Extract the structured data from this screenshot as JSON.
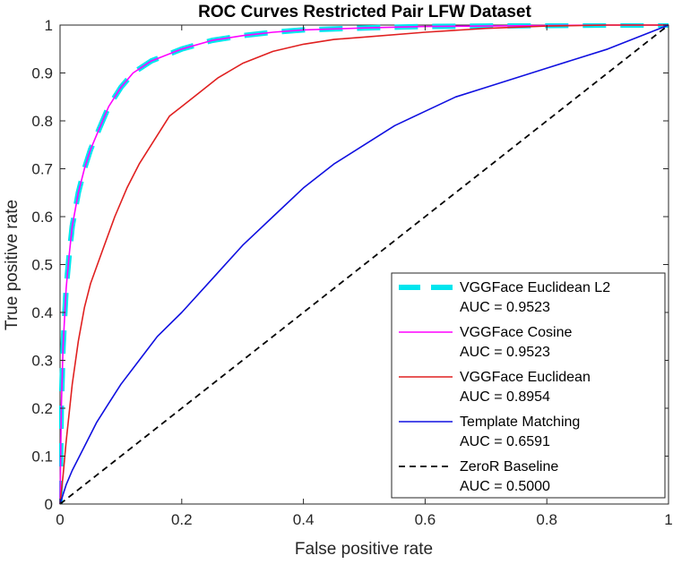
{
  "chart_data": {
    "type": "line",
    "title": "ROC Curves Restricted Pair LFW Dataset",
    "xlabel": "False positive rate",
    "ylabel": "True positive rate",
    "xlim": [
      0,
      1
    ],
    "ylim": [
      0,
      1
    ],
    "grid": false,
    "legend_position": "bottom-right",
    "x_ticks": [
      {
        "value": 0,
        "label": "0"
      },
      {
        "value": 0.2,
        "label": "0.2"
      },
      {
        "value": 0.4,
        "label": "0.4"
      },
      {
        "value": 0.6,
        "label": "0.6"
      },
      {
        "value": 0.8,
        "label": "0.8"
      },
      {
        "value": 1,
        "label": "1"
      }
    ],
    "y_ticks": [
      {
        "value": 0,
        "label": "0"
      },
      {
        "value": 0.1,
        "label": "0.1"
      },
      {
        "value": 0.2,
        "label": "0.2"
      },
      {
        "value": 0.3,
        "label": "0.3"
      },
      {
        "value": 0.4,
        "label": "0.4"
      },
      {
        "value": 0.5,
        "label": "0.5"
      },
      {
        "value": 0.6,
        "label": "0.6"
      },
      {
        "value": 0.7,
        "label": "0.7"
      },
      {
        "value": 0.8,
        "label": "0.8"
      },
      {
        "value": 0.9,
        "label": "0.9"
      },
      {
        "value": 1,
        "label": "1"
      }
    ],
    "series": [
      {
        "name": "VGGFace Euclidean L2",
        "auc_label": "AUC = 0.9523",
        "color": "#00e5ee",
        "style": "dashed-thick",
        "x": [
          0,
          0.002,
          0.005,
          0.01,
          0.015,
          0.02,
          0.03,
          0.04,
          0.05,
          0.06,
          0.08,
          0.1,
          0.12,
          0.15,
          0.2,
          0.25,
          0.3,
          0.35,
          0.4,
          0.5,
          0.6,
          0.7,
          0.8,
          0.9,
          1
        ],
        "y": [
          0,
          0.2,
          0.33,
          0.45,
          0.52,
          0.58,
          0.65,
          0.7,
          0.74,
          0.77,
          0.83,
          0.87,
          0.9,
          0.925,
          0.95,
          0.968,
          0.978,
          0.985,
          0.99,
          0.994,
          0.997,
          0.998,
          0.999,
          1,
          1
        ]
      },
      {
        "name": "VGGFace Cosine",
        "auc_label": "AUC = 0.9523",
        "color": "#ff00ff",
        "style": "solid",
        "x": [
          0,
          0.002,
          0.005,
          0.01,
          0.015,
          0.02,
          0.03,
          0.04,
          0.05,
          0.06,
          0.08,
          0.1,
          0.12,
          0.15,
          0.2,
          0.25,
          0.3,
          0.35,
          0.4,
          0.5,
          0.6,
          0.7,
          0.8,
          0.9,
          1
        ],
        "y": [
          0,
          0.2,
          0.33,
          0.45,
          0.52,
          0.58,
          0.65,
          0.7,
          0.74,
          0.77,
          0.83,
          0.87,
          0.9,
          0.925,
          0.95,
          0.968,
          0.978,
          0.985,
          0.99,
          0.994,
          0.997,
          0.998,
          0.999,
          1,
          1
        ]
      },
      {
        "name": "VGGFace Euclidean",
        "auc_label": "AUC = 0.8954",
        "color": "#e02020",
        "style": "solid",
        "x": [
          0,
          0.005,
          0.01,
          0.02,
          0.03,
          0.04,
          0.05,
          0.07,
          0.09,
          0.11,
          0.13,
          0.16,
          0.18,
          0.2,
          0.23,
          0.26,
          0.3,
          0.35,
          0.4,
          0.45,
          0.5,
          0.6,
          0.7,
          0.8,
          0.9,
          1
        ],
        "y": [
          0,
          0.06,
          0.13,
          0.25,
          0.34,
          0.41,
          0.46,
          0.53,
          0.6,
          0.66,
          0.71,
          0.77,
          0.81,
          0.83,
          0.86,
          0.89,
          0.92,
          0.945,
          0.96,
          0.97,
          0.975,
          0.985,
          0.993,
          0.998,
          1,
          1
        ]
      },
      {
        "name": "Template Matching",
        "auc_label": "AUC = 0.6591",
        "color": "#1010e0",
        "style": "solid",
        "x": [
          0,
          0.01,
          0.02,
          0.04,
          0.06,
          0.08,
          0.1,
          0.13,
          0.16,
          0.2,
          0.25,
          0.3,
          0.35,
          0.4,
          0.45,
          0.5,
          0.55,
          0.6,
          0.65,
          0.7,
          0.8,
          0.9,
          1
        ],
        "y": [
          0,
          0.04,
          0.07,
          0.12,
          0.17,
          0.21,
          0.25,
          0.3,
          0.35,
          0.4,
          0.47,
          0.54,
          0.6,
          0.66,
          0.71,
          0.75,
          0.79,
          0.82,
          0.85,
          0.87,
          0.91,
          0.95,
          1
        ]
      },
      {
        "name": "ZeroR Baseline",
        "auc_label": "AUC = 0.5000",
        "color": "#000000",
        "style": "dashed",
        "x": [
          0,
          1
        ],
        "y": [
          0,
          1
        ]
      }
    ]
  }
}
